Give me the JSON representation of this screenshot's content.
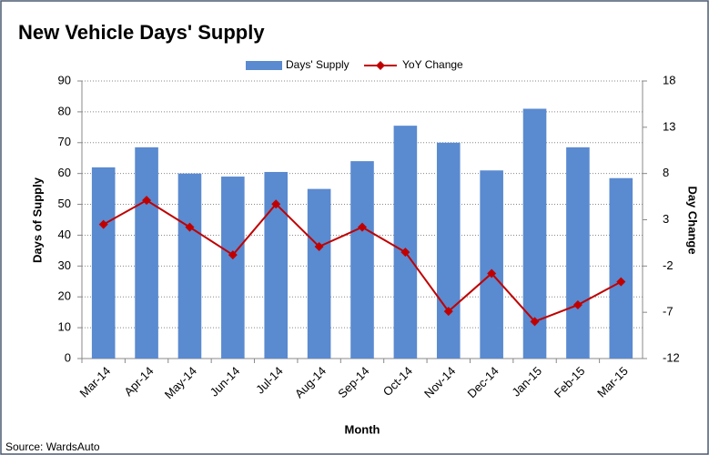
{
  "chart_data": {
    "type": "bar_line",
    "title": "New Vehicle Days' Supply",
    "x_label": "Month",
    "y_label": "Days of Supply",
    "y2_label": "Day Change",
    "source": "Source: WardsAuto",
    "categories": [
      "Mar-14",
      "Apr-14",
      "May-14",
      "Jun-14",
      "Jul-14",
      "Aug-14",
      "Sep-14",
      "Oct-14",
      "Nov-14",
      "Dec-14",
      "Jan-15",
      "Feb-15",
      "Mar-15"
    ],
    "series": [
      {
        "name": "Days' Supply",
        "type": "bar",
        "color": "#5a8ad0",
        "values": [
          62,
          68.5,
          60,
          59,
          60.5,
          55,
          64,
          75.5,
          70,
          61,
          81,
          68.5,
          58.5
        ]
      },
      {
        "name": "YoY Change",
        "type": "line",
        "axis": "y2",
        "color": "#c00000",
        "values": [
          2.5,
          5.1,
          2.2,
          -0.8,
          4.7,
          0.1,
          2.2,
          -0.5,
          -6.9,
          -2.8,
          -8,
          -6.2,
          -3.7
        ]
      }
    ],
    "ylim": [
      0,
      90
    ],
    "yticks": [
      0,
      10,
      20,
      30,
      40,
      50,
      60,
      70,
      80,
      90
    ],
    "y2lim": [
      -12,
      18
    ],
    "y2ticks": [
      -12,
      -7,
      -2,
      3,
      8,
      13,
      18
    ],
    "grid": true,
    "legend": "top"
  }
}
